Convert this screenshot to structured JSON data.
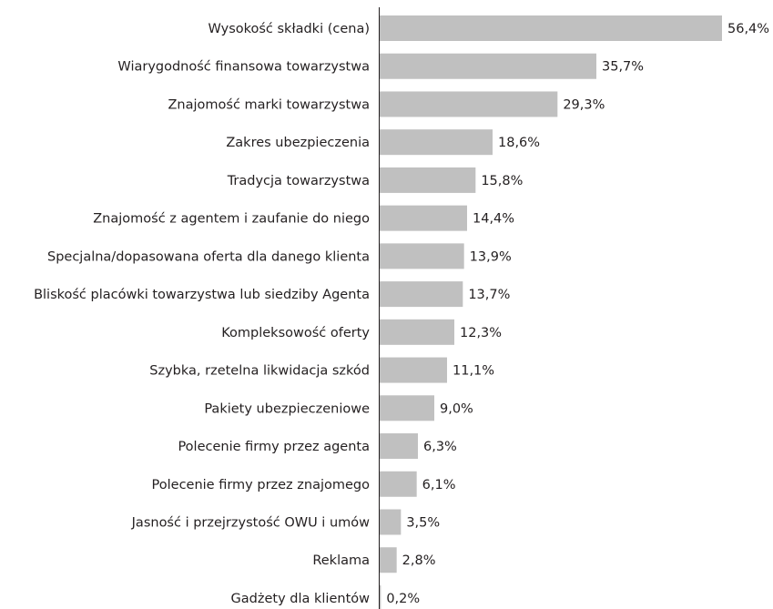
{
  "chart_data": {
    "type": "hbar",
    "categories": [
      "Wysokość składki (cena)",
      "Wiarygodność finansowa towarzystwa",
      "Znajomość marki towarzystwa",
      "Zakres ubezpieczenia",
      "Tradycja towarzystwa",
      "Znajomość z agentem i zaufanie do niego",
      "Specjalna/dopasowana oferta dla danego klienta",
      "Bliskość placówki towarzystwa lub siedziby Agenta",
      "Kompleksowość oferty",
      "Szybka, rzetelna likwidacja szkód",
      "Pakiety ubezpieczeniowe",
      "Polecenie firmy przez agenta",
      "Polecenie firmy przez znajomego",
      "Jasność i przejrzystość OWU i umów",
      "Reklama",
      "Gadżety dla klientów"
    ],
    "values": [
      56.4,
      35.7,
      29.3,
      18.6,
      15.8,
      14.4,
      13.9,
      13.7,
      12.3,
      11.1,
      9.0,
      6.3,
      6.1,
      3.5,
      2.8,
      0.2
    ],
    "value_labels": [
      "56,4%",
      "35,7%",
      "29,3%",
      "18,6%",
      "15,8%",
      "14,4%",
      "13,9%",
      "13,7%",
      "12,3%",
      "11,1%",
      "9,0%",
      "6,3%",
      "6,1%",
      "3,5%",
      "2,8%",
      "0,2%"
    ],
    "color": "#c0c0c0",
    "xlim": [
      0,
      60
    ]
  }
}
